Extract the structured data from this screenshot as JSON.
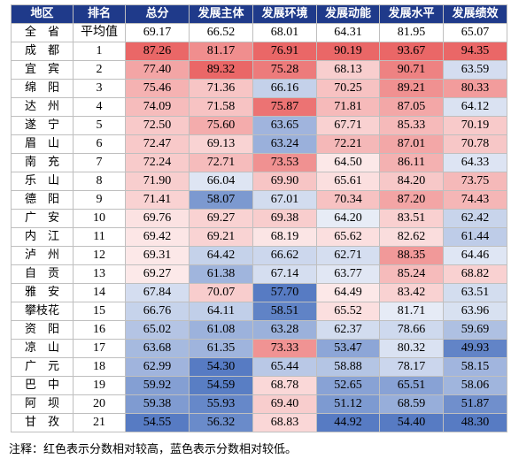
{
  "table": {
    "header": [
      "地区",
      "排名",
      "总分",
      "发展主体",
      "发展环境",
      "发展动能",
      "发展水平",
      "发展绩效"
    ],
    "rows": [
      [
        "全　省",
        "平均值",
        "69.17",
        "66.52",
        "68.01",
        "64.31",
        "81.95",
        "65.07"
      ],
      [
        "成　都",
        "1",
        "87.26",
        "81.17",
        "76.91",
        "90.19",
        "93.67",
        "94.35"
      ],
      [
        "宜　宾",
        "2",
        "77.40",
        "89.32",
        "75.28",
        "68.13",
        "90.71",
        "63.59"
      ],
      [
        "绵　阳",
        "3",
        "75.46",
        "71.36",
        "66.16",
        "70.25",
        "89.21",
        "80.33"
      ],
      [
        "达　州",
        "4",
        "74.09",
        "71.58",
        "75.87",
        "71.81",
        "87.05",
        "64.12"
      ],
      [
        "遂　宁",
        "5",
        "72.50",
        "75.60",
        "63.65",
        "67.71",
        "85.33",
        "70.19"
      ],
      [
        "眉　山",
        "6",
        "72.47",
        "69.13",
        "63.24",
        "72.21",
        "87.01",
        "70.78"
      ],
      [
        "南　充",
        "7",
        "72.24",
        "72.71",
        "73.53",
        "64.50",
        "86.11",
        "64.33"
      ],
      [
        "乐　山",
        "8",
        "71.90",
        "66.04",
        "69.90",
        "65.61",
        "84.20",
        "73.75"
      ],
      [
        "德　阳",
        "9",
        "71.41",
        "58.07",
        "67.01",
        "70.34",
        "87.20",
        "74.43"
      ],
      [
        "广　安",
        "10",
        "69.76",
        "69.27",
        "69.38",
        "64.20",
        "83.51",
        "62.42"
      ],
      [
        "内　江",
        "11",
        "69.42",
        "69.21",
        "68.19",
        "65.62",
        "82.62",
        "61.44"
      ],
      [
        "泸　州",
        "12",
        "69.31",
        "64.42",
        "66.62",
        "62.71",
        "88.35",
        "64.46"
      ],
      [
        "自　贡",
        "13",
        "69.27",
        "61.38",
        "67.14",
        "63.77",
        "85.24",
        "68.82"
      ],
      [
        "雅　安",
        "14",
        "67.84",
        "70.07",
        "57.70",
        "64.49",
        "83.42",
        "63.51"
      ],
      [
        "攀枝花",
        "15",
        "66.76",
        "64.11",
        "58.51",
        "65.52",
        "81.71",
        "63.96"
      ],
      [
        "资　阳",
        "16",
        "65.02",
        "61.08",
        "63.28",
        "62.37",
        "78.66",
        "59.69"
      ],
      [
        "凉　山",
        "17",
        "63.68",
        "61.35",
        "73.33",
        "53.47",
        "80.32",
        "49.93"
      ],
      [
        "广　元",
        "18",
        "62.99",
        "54.30",
        "65.44",
        "58.88",
        "78.17",
        "58.15"
      ],
      [
        "巴　中",
        "19",
        "59.92",
        "54.59",
        "68.78",
        "52.65",
        "65.51",
        "58.06"
      ],
      [
        "阿　坝",
        "20",
        "59.38",
        "55.93",
        "69.40",
        "51.12",
        "68.59",
        "51.87"
      ],
      [
        "甘　孜",
        "21",
        "54.55",
        "56.32",
        "68.83",
        "44.92",
        "54.40",
        "48.30"
      ]
    ]
  },
  "note": "注释：红色表示分数相对较高，蓝色表示分数相对较低。"
}
